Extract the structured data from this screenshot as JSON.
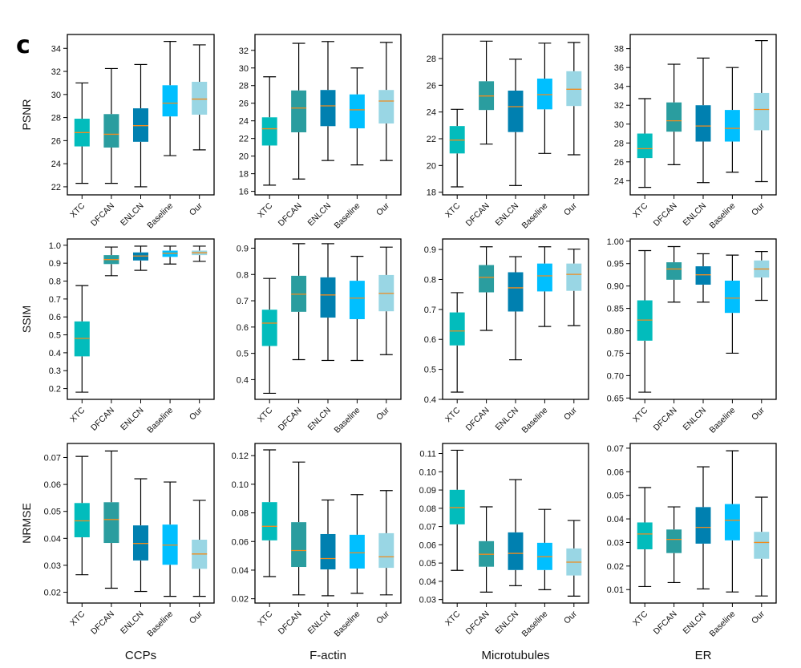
{
  "panel_letter": "c",
  "chart_data": {
    "type": "box",
    "categories": [
      "XTC",
      "DFCAN",
      "ENLCN",
      "Baseline",
      "Our"
    ],
    "colors": {
      "XTC": "#02bcbc",
      "DFCAN": "#2a9d9f",
      "ENLCN": "#0080b0",
      "Baseline": "#00bfff",
      "Our": "#99d6e4",
      "median": "#f08c1e"
    },
    "columns": [
      "CCPs",
      "F-actin",
      "Microtubules",
      "ER"
    ],
    "rows": [
      "PSNR",
      "SSIM",
      "NRMSE"
    ],
    "grid": false,
    "panels": [
      {
        "row": "PSNR",
        "column": "CCPs",
        "ylim": [
          21.3,
          35.2
        ],
        "yticks": [
          22,
          24,
          26,
          28,
          30,
          32,
          34
        ],
        "tick_decimals": 0,
        "boxes": [
          [
            22.3,
            25.5,
            26.7,
            27.9,
            31.0
          ],
          [
            22.3,
            25.4,
            26.55,
            28.3,
            32.25
          ],
          [
            22.0,
            25.9,
            27.3,
            28.8,
            32.6
          ],
          [
            24.7,
            28.1,
            29.25,
            30.8,
            34.6
          ],
          [
            25.2,
            28.25,
            29.6,
            31.1,
            34.3
          ]
        ]
      },
      {
        "row": "PSNR",
        "column": "F-actin",
        "ylim": [
          15.6,
          33.8
        ],
        "yticks": [
          16,
          18,
          20,
          22,
          24,
          26,
          28,
          30,
          32
        ],
        "tick_decimals": 0,
        "boxes": [
          [
            16.7,
            21.2,
            23.1,
            24.4,
            29.0
          ],
          [
            17.4,
            22.7,
            25.45,
            27.45,
            32.8
          ],
          [
            19.5,
            23.4,
            25.7,
            27.5,
            33.0
          ],
          [
            19.0,
            23.15,
            25.25,
            27.0,
            30.0
          ],
          [
            19.5,
            23.7,
            26.25,
            27.5,
            32.9
          ]
        ]
      },
      {
        "row": "PSNR",
        "column": "Microtubules",
        "ylim": [
          17.8,
          29.8
        ],
        "yticks": [
          18,
          20,
          22,
          24,
          26,
          28
        ],
        "tick_decimals": 0,
        "boxes": [
          [
            18.4,
            20.9,
            21.9,
            22.95,
            24.2
          ],
          [
            21.6,
            24.15,
            25.2,
            26.3,
            29.3
          ],
          [
            18.5,
            22.5,
            24.4,
            25.6,
            27.95
          ],
          [
            20.9,
            24.2,
            25.3,
            26.5,
            29.15
          ],
          [
            20.8,
            24.45,
            25.7,
            27.05,
            29.2
          ]
        ]
      },
      {
        "row": "PSNR",
        "column": "ER",
        "ylim": [
          22.5,
          39.5
        ],
        "yticks": [
          24,
          26,
          28,
          30,
          32,
          34,
          36,
          38
        ],
        "tick_decimals": 0,
        "boxes": [
          [
            23.3,
            26.4,
            27.4,
            29.0,
            32.7
          ],
          [
            25.7,
            29.2,
            30.35,
            32.3,
            36.35
          ],
          [
            23.8,
            28.15,
            29.8,
            32.0,
            37.0
          ],
          [
            24.9,
            28.15,
            29.55,
            31.5,
            36.0
          ],
          [
            23.9,
            29.35,
            31.55,
            33.3,
            38.85
          ]
        ]
      },
      {
        "row": "SSIM",
        "column": "CCPs",
        "ylim": [
          0.14,
          1.035
        ],
        "yticks": [
          0.2,
          0.3,
          0.4,
          0.5,
          0.6,
          0.7,
          0.8,
          0.9,
          1.0
        ],
        "tick_decimals": 1,
        "boxes": [
          [
            0.18,
            0.38,
            0.48,
            0.575,
            0.775
          ],
          [
            0.83,
            0.895,
            0.92,
            0.945,
            0.99
          ],
          [
            0.86,
            0.915,
            0.94,
            0.96,
            0.995
          ],
          [
            0.895,
            0.935,
            0.955,
            0.97,
            0.995
          ],
          [
            0.91,
            0.945,
            0.958,
            0.97,
            0.995
          ]
        ]
      },
      {
        "row": "SSIM",
        "column": "F-actin",
        "ylim": [
          0.325,
          0.935
        ],
        "yticks": [
          0.4,
          0.5,
          0.6,
          0.7,
          0.8,
          0.9
        ],
        "tick_decimals": 1,
        "boxes": [
          [
            0.348,
            0.528,
            0.615,
            0.666,
            0.785
          ],
          [
            0.476,
            0.658,
            0.725,
            0.795,
            0.917
          ],
          [
            0.473,
            0.636,
            0.722,
            0.789,
            0.917
          ],
          [
            0.473,
            0.63,
            0.71,
            0.776,
            0.869
          ],
          [
            0.495,
            0.66,
            0.728,
            0.798,
            0.904
          ]
        ]
      },
      {
        "row": "SSIM",
        "column": "Microtubules",
        "ylim": [
          0.4,
          0.935
        ],
        "yticks": [
          0.4,
          0.5,
          0.6,
          0.7,
          0.8,
          0.9
        ],
        "tick_decimals": 1,
        "boxes": [
          [
            0.424,
            0.58,
            0.628,
            0.69,
            0.756
          ],
          [
            0.63,
            0.757,
            0.807,
            0.848,
            0.909
          ],
          [
            0.532,
            0.693,
            0.772,
            0.824,
            0.876
          ],
          [
            0.643,
            0.76,
            0.812,
            0.853,
            0.909
          ],
          [
            0.646,
            0.762,
            0.817,
            0.853,
            0.901
          ]
        ]
      },
      {
        "row": "SSIM",
        "column": "ER",
        "ylim": [
          0.647,
          1.005
        ],
        "yticks": [
          0.65,
          0.7,
          0.75,
          0.8,
          0.85,
          0.9,
          0.95,
          1.0
        ],
        "tick_decimals": 2,
        "boxes": [
          [
            0.663,
            0.778,
            0.824,
            0.868,
            0.979
          ],
          [
            0.864,
            0.914,
            0.938,
            0.953,
            0.988
          ],
          [
            0.864,
            0.903,
            0.925,
            0.944,
            0.972
          ],
          [
            0.75,
            0.84,
            0.873,
            0.912,
            0.969
          ],
          [
            0.868,
            0.919,
            0.938,
            0.957,
            0.977
          ]
        ]
      },
      {
        "row": "NRMSE",
        "column": "CCPs",
        "ylim": [
          0.016,
          0.0752
        ],
        "yticks": [
          0.02,
          0.03,
          0.04,
          0.05,
          0.06,
          0.07
        ],
        "tick_decimals": 2,
        "boxes": [
          [
            0.0265,
            0.0404,
            0.0465,
            0.0531,
            0.0704
          ],
          [
            0.0215,
            0.0383,
            0.047,
            0.0534,
            0.0724
          ],
          [
            0.0203,
            0.0318,
            0.0381,
            0.0448,
            0.0621
          ],
          [
            0.0185,
            0.0302,
            0.0375,
            0.0451,
            0.0609
          ],
          [
            0.0185,
            0.0287,
            0.0342,
            0.0395,
            0.0541
          ]
        ]
      },
      {
        "row": "NRMSE",
        "column": "F-actin",
        "ylim": [
          0.017,
          0.1285
        ],
        "yticks": [
          0.02,
          0.04,
          0.06,
          0.08,
          0.1,
          0.12
        ],
        "tick_decimals": 2,
        "boxes": [
          [
            0.0355,
            0.0608,
            0.0706,
            0.0875,
            0.124
          ],
          [
            0.0227,
            0.0422,
            0.0537,
            0.0735,
            0.1155
          ],
          [
            0.0221,
            0.0405,
            0.0481,
            0.0652,
            0.089
          ],
          [
            0.0238,
            0.0411,
            0.0521,
            0.0647,
            0.0928
          ],
          [
            0.0227,
            0.0416,
            0.0493,
            0.0658,
            0.0956
          ]
        ]
      },
      {
        "row": "NRMSE",
        "column": "Microtubules",
        "ylim": [
          0.0281,
          0.1155
        ],
        "yticks": [
          0.03,
          0.04,
          0.05,
          0.06,
          0.07,
          0.08,
          0.09,
          0.1,
          0.11
        ],
        "tick_decimals": 2,
        "boxes": [
          [
            0.046,
            0.0712,
            0.0804,
            0.0901,
            0.1118
          ],
          [
            0.0341,
            0.048,
            0.0548,
            0.062,
            0.0808
          ],
          [
            0.0376,
            0.0462,
            0.0553,
            0.0668,
            0.0957
          ],
          [
            0.0354,
            0.0462,
            0.0535,
            0.0611,
            0.0794
          ],
          [
            0.0319,
            0.0432,
            0.0505,
            0.058,
            0.0733
          ]
        ]
      },
      {
        "row": "NRMSE",
        "column": "ER",
        "ylim": [
          0.0043,
          0.072
        ],
        "yticks": [
          0.01,
          0.02,
          0.03,
          0.04,
          0.05,
          0.06,
          0.07
        ],
        "tick_decimals": 2,
        "boxes": [
          [
            0.0113,
            0.0271,
            0.0336,
            0.0385,
            0.0533
          ],
          [
            0.013,
            0.0255,
            0.0313,
            0.0355,
            0.0451
          ],
          [
            0.0103,
            0.0295,
            0.0364,
            0.045,
            0.0621
          ],
          [
            0.009,
            0.0309,
            0.0394,
            0.0463,
            0.0689
          ],
          [
            0.0073,
            0.0231,
            0.03,
            0.0345,
            0.0492
          ]
        ]
      }
    ]
  }
}
